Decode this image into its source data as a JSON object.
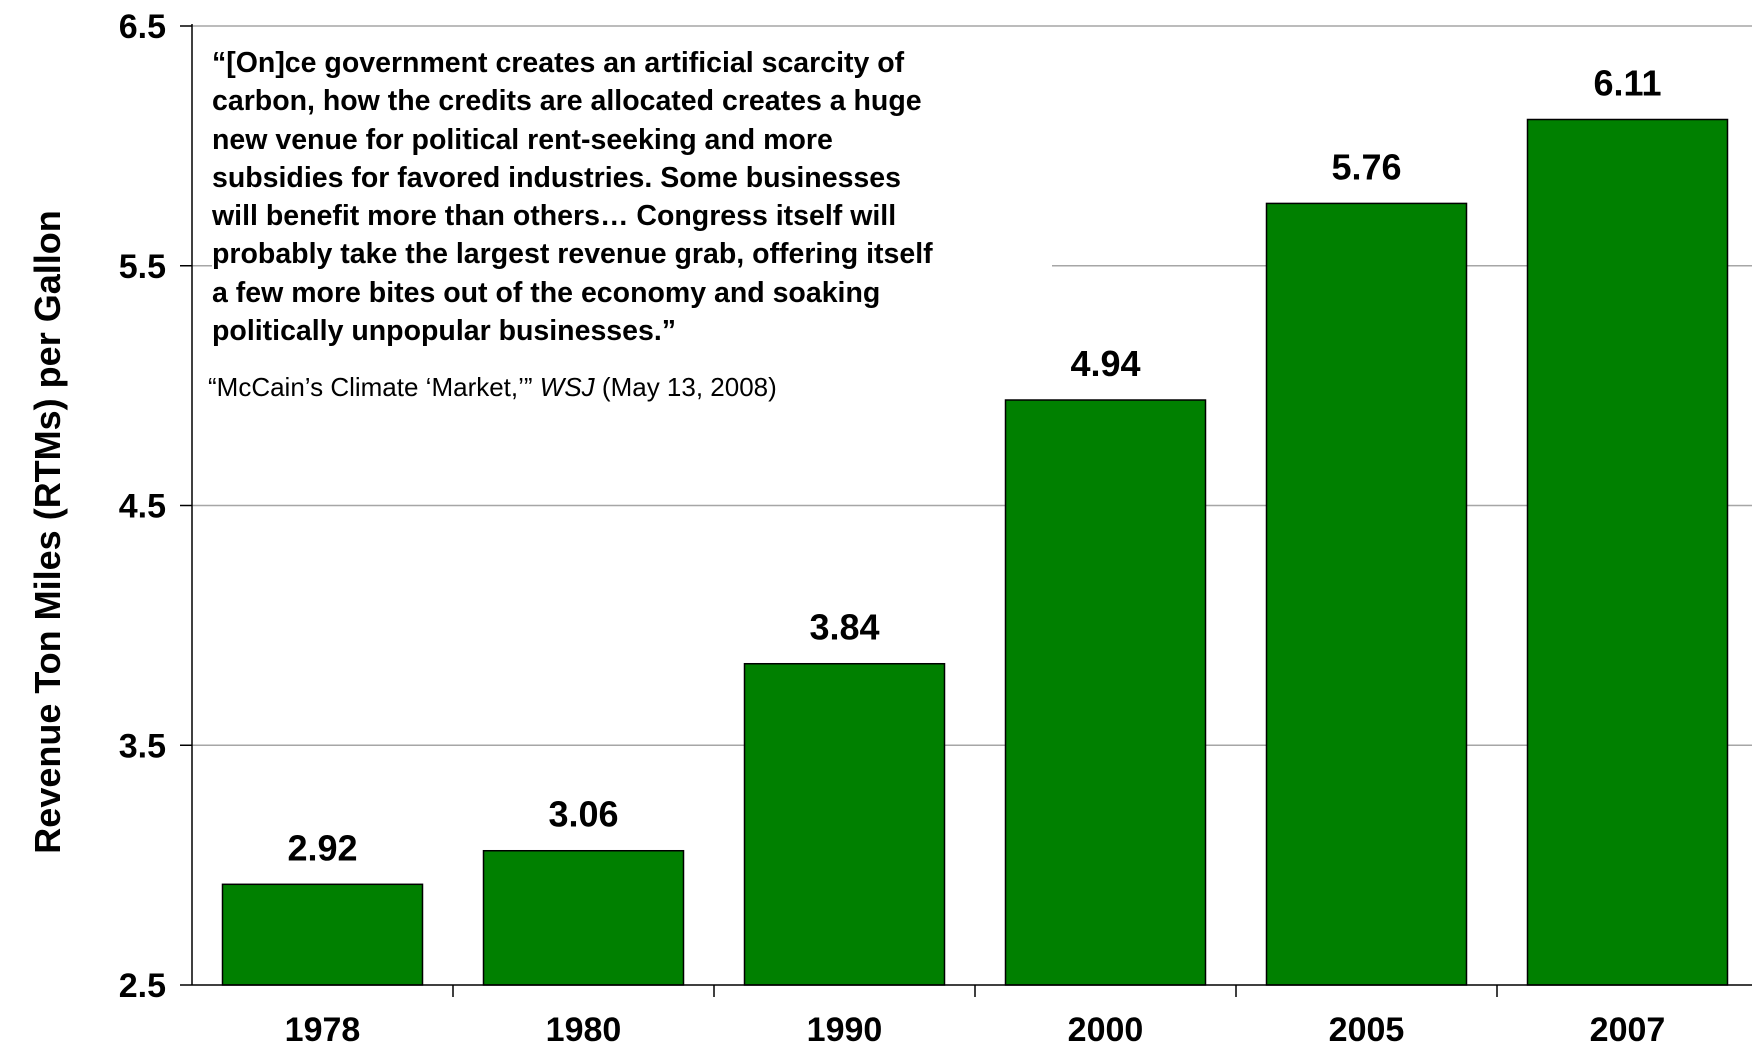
{
  "chart_data": {
    "type": "bar",
    "categories": [
      "1978",
      "1980",
      "1990",
      "2000",
      "2005",
      "2007"
    ],
    "values": [
      2.92,
      3.06,
      3.84,
      4.94,
      5.76,
      6.11
    ],
    "data_labels": [
      "2.92",
      "3.06",
      "3.84",
      "4.94",
      "5.76",
      "6.11"
    ],
    "ylabel": "Revenue Ton Miles (RTMs) per Gallon",
    "xlabel": "",
    "ylim": [
      2.5,
      6.5
    ],
    "yticks": [
      "2.5",
      "3.5",
      "4.5",
      "5.5",
      "6.5"
    ],
    "ytick_values": [
      2.5,
      3.5,
      4.5,
      5.5,
      6.5
    ],
    "grid": true,
    "bar_color": "#008000",
    "annotation": {
      "quote": "“[On]ce government creates an artificial scarcity of\ncarbon, how the credits are allocated creates a huge\nnew venue for political rent-seeking and more\nsubsidies for favored industries. Some businesses\nwill benefit more than others… Congress itself will\nprobably take the largest revenue grab, offering itself\na few more bites out of the economy and soaking\npolitically unpopular businesses.”",
      "source_prefix": "“McCain’s Climate ‘Market,’” ",
      "source_publication": "WSJ",
      "source_suffix": " (May 13, 2008)"
    }
  }
}
